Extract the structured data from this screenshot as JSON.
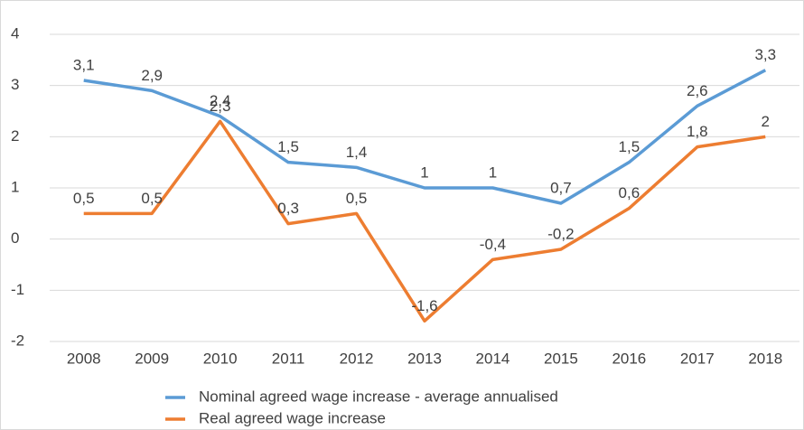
{
  "chart_data": {
    "type": "line",
    "categories": [
      "2008",
      "2009",
      "2010",
      "2011",
      "2012",
      "2013",
      "2014",
      "2015",
      "2016",
      "2017",
      "2018"
    ],
    "series": [
      {
        "name": "Nominal agreed wage increase - average annualised",
        "color": "#5b9bd5",
        "values": [
          3.1,
          2.9,
          2.4,
          1.5,
          1.4,
          1,
          1,
          0.7,
          1.5,
          2.6,
          3.3
        ],
        "value_labels": [
          "3,1",
          "2,9",
          "2,4",
          "1,5",
          "1,4",
          "1",
          "1",
          "0,7",
          "1,5",
          "2,6",
          "3,3"
        ]
      },
      {
        "name": "Real agreed wage increase",
        "color": "#ed7d31",
        "values": [
          0.5,
          0.5,
          2.3,
          0.3,
          0.5,
          -1.6,
          -0.4,
          -0.2,
          0.6,
          1.8,
          2
        ],
        "value_labels": [
          "0,5",
          "0,5",
          "2,3",
          "0,3",
          "0,5",
          "-1,6",
          "-0,4",
          "-0,2",
          "0,6",
          "1,8",
          "2"
        ]
      }
    ],
    "ylim": [
      -2,
      4
    ],
    "yticks": [
      -2,
      -1,
      0,
      1,
      2,
      3,
      4
    ],
    "grid": true,
    "legend": "bottom"
  }
}
